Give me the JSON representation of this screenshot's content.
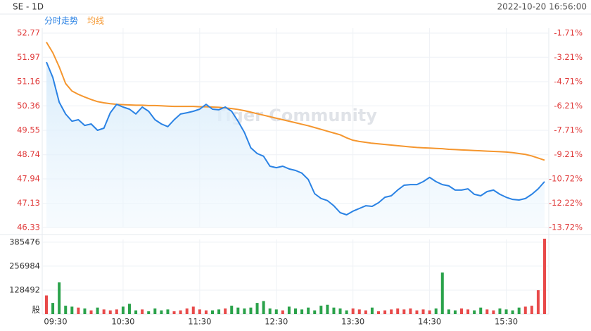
{
  "chart_data": {
    "type": "line",
    "title": "SE - 1D",
    "timestamp": "2022-10-20 16:56:00",
    "watermark": "Tiger Community",
    "categories": [
      "09:30",
      null,
      null,
      null,
      null,
      null,
      null,
      null,
      null,
      null,
      null,
      null,
      "10:30",
      null,
      null,
      null,
      null,
      null,
      null,
      null,
      null,
      null,
      null,
      null,
      "11:30",
      null,
      null,
      null,
      null,
      null,
      null,
      null,
      null,
      null,
      null,
      null,
      "12:30",
      null,
      null,
      null,
      null,
      null,
      null,
      null,
      null,
      null,
      null,
      null,
      "13:30",
      null,
      null,
      null,
      null,
      null,
      null,
      null,
      null,
      null,
      null,
      null,
      "14:30",
      null,
      null,
      null,
      null,
      null,
      null,
      null,
      null,
      null,
      null,
      null,
      "15:30",
      null,
      null,
      null,
      null,
      null,
      null
    ],
    "ylim": [
      46.33,
      52.77
    ],
    "yticks": [
      52.77,
      51.97,
      51.16,
      50.36,
      49.55,
      48.74,
      47.94,
      47.13,
      46.33
    ],
    "y2lim": [
      -13.72,
      -1.71
    ],
    "y2ticks": [
      {
        "value": -1.71,
        "label": "-1.71%"
      },
      {
        "value": -3.21,
        "label": "-3.21%"
      },
      {
        "value": -4.71,
        "label": "-4.71%"
      },
      {
        "value": -6.21,
        "label": "-6.21%"
      },
      {
        "value": -7.71,
        "label": "-7.71%"
      },
      {
        "value": -9.21,
        "label": "-9.21%"
      },
      {
        "value": -10.72,
        "label": "-10.72%"
      },
      {
        "value": -12.22,
        "label": "-12.22%"
      },
      {
        "value": -13.72,
        "label": "-13.72%"
      }
    ],
    "grid": true,
    "series": [
      {
        "name": "分时走势",
        "color": "#2a82e4",
        "values": [
          51.81,
          51.3,
          50.48,
          50.09,
          49.85,
          49.9,
          49.71,
          49.76,
          49.55,
          49.62,
          50.13,
          50.41,
          50.32,
          50.25,
          50.09,
          50.32,
          50.18,
          49.9,
          49.76,
          49.67,
          49.9,
          50.09,
          50.13,
          50.18,
          50.25,
          50.41,
          50.25,
          50.23,
          50.32,
          50.18,
          49.85,
          49.48,
          48.97,
          48.78,
          48.69,
          48.36,
          48.31,
          48.36,
          48.27,
          48.22,
          48.13,
          47.92,
          47.45,
          47.29,
          47.22,
          47.05,
          46.82,
          46.75,
          46.87,
          46.96,
          47.05,
          47.03,
          47.15,
          47.33,
          47.38,
          47.57,
          47.73,
          47.75,
          47.75,
          47.85,
          47.99,
          47.85,
          47.75,
          47.71,
          47.57,
          47.57,
          47.61,
          47.43,
          47.38,
          47.52,
          47.57,
          47.43,
          47.33,
          47.26,
          47.24,
          47.29,
          47.43,
          47.61,
          47.85
        ]
      },
      {
        "name": "均线",
        "color": "#f5962e",
        "values": [
          52.47,
          52.12,
          51.65,
          51.1,
          50.85,
          50.74,
          50.65,
          50.57,
          50.5,
          50.46,
          50.43,
          50.41,
          50.4,
          50.39,
          50.38,
          50.38,
          50.37,
          50.37,
          50.36,
          50.35,
          50.34,
          50.34,
          50.34,
          50.34,
          50.33,
          50.33,
          50.32,
          50.31,
          50.29,
          50.27,
          50.24,
          50.2,
          50.15,
          50.1,
          50.05,
          50.0,
          49.95,
          49.9,
          49.85,
          49.8,
          49.75,
          49.7,
          49.64,
          49.58,
          49.52,
          49.46,
          49.4,
          49.3,
          49.22,
          49.18,
          49.15,
          49.12,
          49.1,
          49.08,
          49.06,
          49.04,
          49.02,
          49.0,
          48.98,
          48.97,
          48.96,
          48.95,
          48.94,
          48.92,
          48.91,
          48.9,
          48.89,
          48.88,
          48.87,
          48.86,
          48.85,
          48.84,
          48.83,
          48.81,
          48.78,
          48.75,
          48.7,
          48.63,
          48.56
        ]
      }
    ],
    "volume": {
      "unit": "股",
      "up_color": "#e84a4a",
      "down_color": "#2aa24a",
      "ylim": [
        0,
        400000
      ],
      "yticks": [
        128492,
        256984,
        385476
      ],
      "values": [
        100000,
        60000,
        170000,
        45000,
        40000,
        35000,
        30000,
        20000,
        35000,
        25000,
        20000,
        25000,
        40000,
        55000,
        20000,
        25000,
        15000,
        30000,
        20000,
        25000,
        15000,
        20000,
        30000,
        40000,
        25000,
        20000,
        20000,
        25000,
        30000,
        45000,
        35000,
        30000,
        35000,
        60000,
        70000,
        30000,
        25000,
        20000,
        40000,
        30000,
        25000,
        35000,
        20000,
        45000,
        50000,
        35000,
        30000,
        20000,
        30000,
        25000,
        20000,
        35000,
        15000,
        20000,
        25000,
        30000,
        25000,
        30000,
        20000,
        25000,
        20000,
        30000,
        223000,
        25000,
        20000,
        30000,
        25000,
        20000,
        35000,
        25000,
        20000,
        30000,
        25000,
        20000,
        35000,
        40000,
        45000,
        128000,
        404000
      ]
    }
  }
}
